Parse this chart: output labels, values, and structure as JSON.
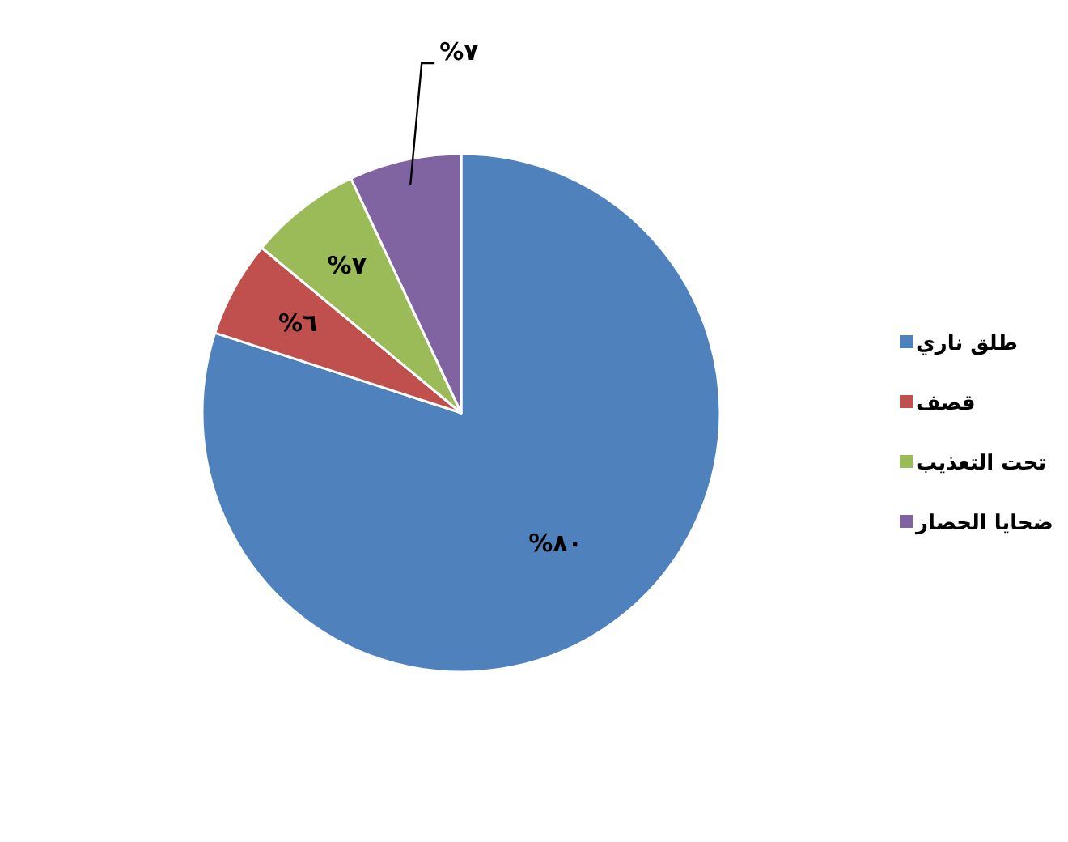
{
  "chart_data": {
    "type": "pie",
    "categories": [
      "طلق ناري",
      "قصف",
      "تحت التعذيب",
      "ضحايا الحصار"
    ],
    "values": [
      80,
      6,
      7,
      7
    ],
    "colors": [
      "#4f81bd",
      "#c0504d",
      "#9bbb59",
      "#8064a2"
    ],
    "value_labels": [
      "%٨٠",
      "%٦",
      "%٧",
      "%٧"
    ],
    "legend": "right"
  }
}
